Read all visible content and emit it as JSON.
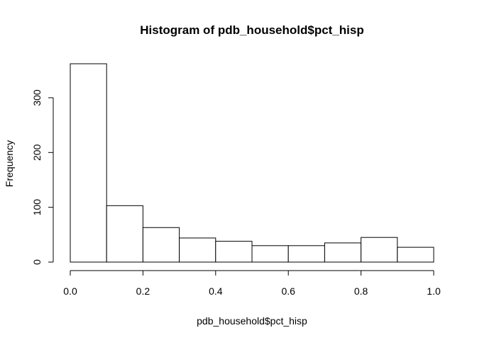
{
  "chart_data": {
    "type": "bar",
    "title": "Histogram of pdb_household$pct_hisp",
    "xlabel": "pdb_household$pct_hisp",
    "ylabel": "Frequency",
    "bins": [
      {
        "start": 0.0,
        "end": 0.1,
        "count": 362
      },
      {
        "start": 0.1,
        "end": 0.2,
        "count": 103
      },
      {
        "start": 0.2,
        "end": 0.3,
        "count": 63
      },
      {
        "start": 0.3,
        "end": 0.4,
        "count": 44
      },
      {
        "start": 0.4,
        "end": 0.5,
        "count": 38
      },
      {
        "start": 0.5,
        "end": 0.6,
        "count": 30
      },
      {
        "start": 0.6,
        "end": 0.7,
        "count": 30
      },
      {
        "start": 0.7,
        "end": 0.8,
        "count": 35
      },
      {
        "start": 0.8,
        "end": 0.9,
        "count": 45
      },
      {
        "start": 0.9,
        "end": 1.0,
        "count": 27
      }
    ],
    "xlim": [
      0.0,
      1.0
    ],
    "ylim": [
      0,
      362
    ],
    "x_ticks": [
      "0.0",
      "0.2",
      "0.4",
      "0.6",
      "0.8",
      "1.0"
    ],
    "y_ticks": [
      "0",
      "100",
      "200",
      "300"
    ],
    "bar_fill": "#ffffff",
    "bar_stroke": "#000000",
    "grid": false,
    "legend": "none"
  }
}
